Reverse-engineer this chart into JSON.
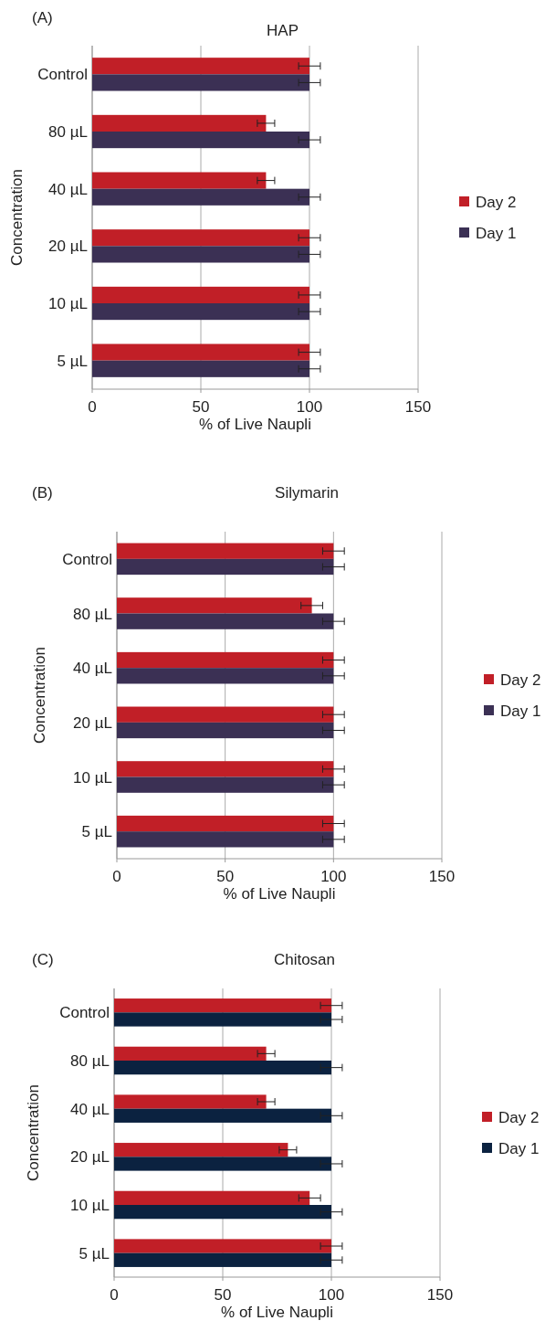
{
  "chart_data": [
    {
      "type": "bar",
      "orientation": "horizontal",
      "title": "HAP",
      "annotations": [
        "(A)"
      ],
      "xlabel": "% of Live Naupli",
      "ylabel": "Concentration",
      "categories": [
        "Control",
        "80 µL",
        "40 µL",
        "20 µL",
        "10 µL",
        "5 µL"
      ],
      "series": [
        {
          "name": "Day 2",
          "color": "#c11f27",
          "values": [
            100,
            80,
            80,
            100,
            100,
            100
          ],
          "errors": [
            5,
            4,
            4,
            5,
            5,
            5
          ]
        },
        {
          "name": "Day 1",
          "color": "#3b3054",
          "values": [
            100,
            100,
            100,
            100,
            100,
            100
          ],
          "errors": [
            5,
            5,
            5,
            5,
            5,
            5
          ]
        }
      ],
      "xlim": [
        0,
        150
      ],
      "xticks": [
        0,
        50,
        100,
        150
      ],
      "grid": "x",
      "legend": "right"
    },
    {
      "type": "bar",
      "orientation": "horizontal",
      "title": "Silymarin",
      "annotations": [
        "(B)"
      ],
      "xlabel": "% of Live Naupli",
      "ylabel": "Concentration",
      "categories": [
        "Control",
        "80 µL",
        "40 µL",
        "20 µL",
        "10 µL",
        "5 µL"
      ],
      "series": [
        {
          "name": "Day 2",
          "color": "#c11f27",
          "values": [
            100,
            90,
            100,
            100,
            100,
            100
          ],
          "errors": [
            5,
            5,
            5,
            5,
            5,
            5
          ]
        },
        {
          "name": "Day 1",
          "color": "#3b3054",
          "values": [
            100,
            100,
            100,
            100,
            100,
            100
          ],
          "errors": [
            5,
            5,
            5,
            5,
            5,
            5
          ]
        }
      ],
      "xlim": [
        0,
        150
      ],
      "xticks": [
        0,
        50,
        100,
        150
      ],
      "grid": "x",
      "legend": "right"
    },
    {
      "type": "bar",
      "orientation": "horizontal",
      "title": "Chitosan",
      "annotations": [
        "(C)"
      ],
      "xlabel": "% of Live Naupli",
      "ylabel": "Concentration",
      "categories": [
        "Control",
        "80 µL",
        "40 µL",
        "20 µL",
        "10 µL",
        "5 µL"
      ],
      "series": [
        {
          "name": "Day 2",
          "color": "#c11f27",
          "values": [
            100,
            70,
            70,
            80,
            90,
            100
          ],
          "errors": [
            5,
            4,
            4,
            4,
            5,
            5
          ]
        },
        {
          "name": "Day 1",
          "color": "#0b2240",
          "values": [
            100,
            100,
            100,
            100,
            100,
            100
          ],
          "errors": [
            5,
            5,
            5,
            5,
            5,
            5
          ]
        }
      ],
      "xlim": [
        0,
        150
      ],
      "xticks": [
        0,
        50,
        100,
        150
      ],
      "grid": "x",
      "legend": "right"
    }
  ]
}
